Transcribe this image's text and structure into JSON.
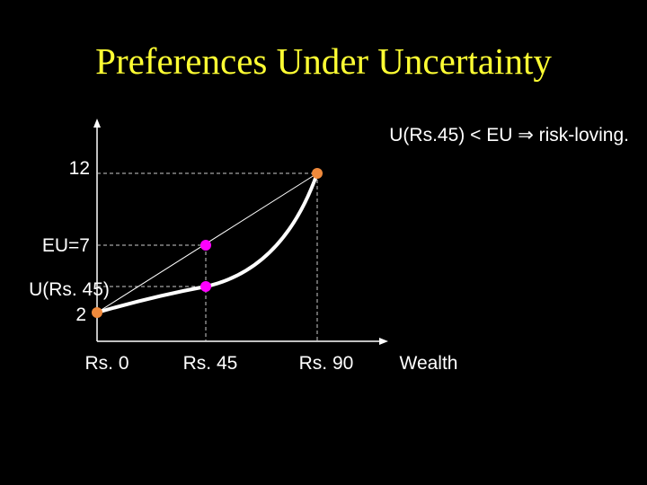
{
  "header": {
    "title": "Preferences Under Uncertainty"
  },
  "note": "U(Rs.45) < EU ⇒ risk-loving.",
  "y_labels": [
    "12",
    "EU=7",
    "U(Rs. 45)",
    "2"
  ],
  "x_labels": [
    "Rs. 0",
    "Rs. 45",
    "Rs. 90",
    "Wealth"
  ]
}
